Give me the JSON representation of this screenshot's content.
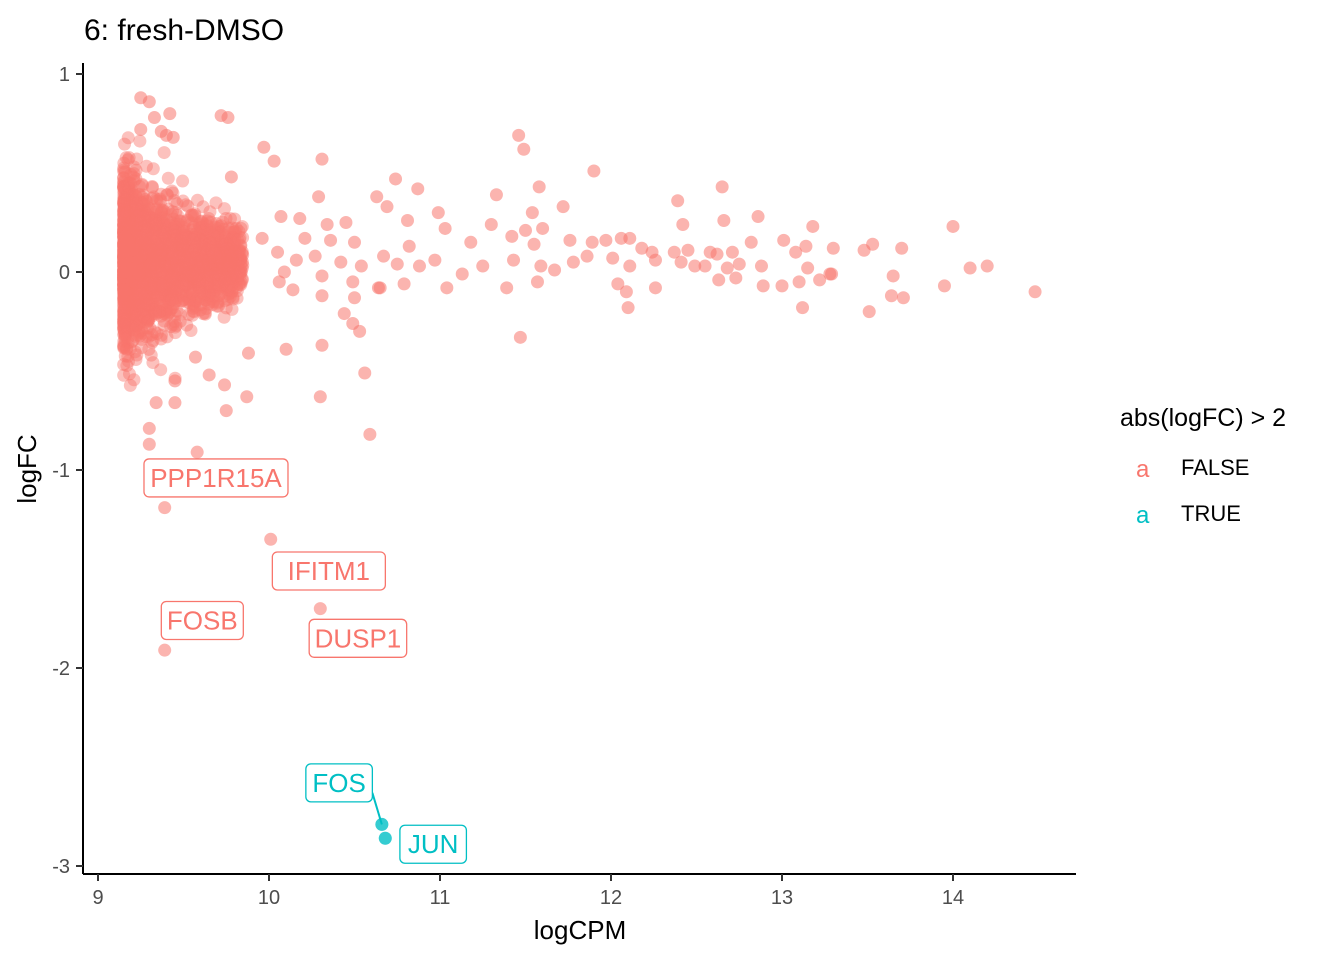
{
  "chart_data": {
    "type": "scatter",
    "title": "6: fresh-DMSO",
    "xlabel": "logCPM",
    "ylabel": "logFC",
    "xlim": [
      8.9,
      14.75
    ],
    "ylim": [
      -3.05,
      1.05
    ],
    "x_ticks": [
      9,
      10,
      11,
      12,
      13,
      14
    ],
    "y_ticks": [
      -3,
      -2,
      -1,
      0,
      1
    ],
    "grid": false,
    "legend": {
      "title": "abs(logFC) > 2",
      "position": "right",
      "key_glyph": "a",
      "entries": [
        {
          "label": "FALSE",
          "color": "#F8766D"
        },
        {
          "label": "TRUE",
          "color": "#00BFC4"
        }
      ]
    },
    "series": [
      {
        "name": "FALSE",
        "color": "#F8766D",
        "points": [
          [
            9.25,
            0.88
          ],
          [
            9.3,
            0.86
          ],
          [
            9.42,
            0.8
          ],
          [
            9.33,
            0.78
          ],
          [
            9.72,
            0.79
          ],
          [
            9.76,
            0.78
          ],
          [
            9.25,
            0.72
          ],
          [
            9.37,
            0.71
          ],
          [
            9.4,
            0.69
          ],
          [
            9.44,
            0.68
          ],
          [
            9.97,
            0.63
          ],
          [
            10.31,
            0.57
          ],
          [
            10.03,
            0.56
          ],
          [
            9.78,
            0.48
          ],
          [
            11.46,
            0.69
          ],
          [
            11.49,
            0.62
          ],
          [
            11.9,
            0.51
          ],
          [
            10.74,
            0.47
          ],
          [
            10.87,
            0.42
          ],
          [
            11.58,
            0.43
          ],
          [
            12.65,
            0.43
          ],
          [
            10.63,
            0.38
          ],
          [
            10.29,
            0.38
          ],
          [
            11.33,
            0.39
          ],
          [
            12.39,
            0.36
          ],
          [
            10.69,
            0.33
          ],
          [
            11.54,
            0.3
          ],
          [
            11.72,
            0.33
          ],
          [
            10.81,
            0.26
          ],
          [
            10.99,
            0.3
          ],
          [
            10.07,
            0.28
          ],
          [
            10.18,
            0.27
          ],
          [
            10.34,
            0.24
          ],
          [
            10.45,
            0.25
          ],
          [
            11.3,
            0.24
          ],
          [
            11.5,
            0.21
          ],
          [
            11.6,
            0.22
          ],
          [
            12.42,
            0.24
          ],
          [
            12.66,
            0.26
          ],
          [
            12.86,
            0.28
          ],
          [
            13.18,
            0.23
          ],
          [
            14.0,
            0.23
          ],
          [
            9.96,
            0.17
          ],
          [
            10.21,
            0.17
          ],
          [
            10.36,
            0.16
          ],
          [
            10.5,
            0.15
          ],
          [
            10.82,
            0.13
          ],
          [
            11.03,
            0.22
          ],
          [
            11.18,
            0.15
          ],
          [
            11.42,
            0.18
          ],
          [
            11.55,
            0.14
          ],
          [
            11.76,
            0.16
          ],
          [
            11.89,
            0.15
          ],
          [
            11.97,
            0.16
          ],
          [
            12.06,
            0.17
          ],
          [
            12.11,
            0.17
          ],
          [
            12.18,
            0.12
          ],
          [
            12.24,
            0.1
          ],
          [
            12.37,
            0.1
          ],
          [
            12.45,
            0.11
          ],
          [
            12.58,
            0.1
          ],
          [
            12.62,
            0.09
          ],
          [
            12.71,
            0.1
          ],
          [
            12.82,
            0.15
          ],
          [
            13.01,
            0.16
          ],
          [
            13.08,
            0.1
          ],
          [
            13.14,
            0.13
          ],
          [
            13.3,
            0.12
          ],
          [
            13.48,
            0.11
          ],
          [
            13.53,
            0.14
          ],
          [
            13.7,
            0.12
          ],
          [
            10.05,
            0.1
          ],
          [
            10.16,
            0.06
          ],
          [
            10.27,
            0.08
          ],
          [
            10.42,
            0.05
          ],
          [
            10.54,
            0.03
          ],
          [
            10.67,
            0.08
          ],
          [
            10.75,
            0.04
          ],
          [
            10.88,
            0.03
          ],
          [
            10.97,
            0.06
          ],
          [
            11.25,
            0.03
          ],
          [
            11.43,
            0.06
          ],
          [
            11.59,
            0.03
          ],
          [
            11.78,
            0.05
          ],
          [
            11.86,
            0.08
          ],
          [
            12.01,
            0.07
          ],
          [
            12.11,
            0.03
          ],
          [
            12.26,
            0.06
          ],
          [
            12.41,
            0.05
          ],
          [
            12.49,
            0.03
          ],
          [
            12.55,
            0.03
          ],
          [
            12.68,
            0.02
          ],
          [
            12.75,
            0.04
          ],
          [
            12.88,
            0.03
          ],
          [
            13.15,
            0.02
          ],
          [
            13.28,
            -0.01
          ],
          [
            13.65,
            -0.02
          ],
          [
            13.95,
            -0.07
          ],
          [
            14.1,
            0.02
          ],
          [
            14.2,
            0.03
          ],
          [
            14.48,
            -0.1
          ],
          [
            10.09,
            0.0
          ],
          [
            10.31,
            -0.02
          ],
          [
            10.49,
            -0.05
          ],
          [
            10.64,
            -0.08
          ],
          [
            10.79,
            -0.06
          ],
          [
            11.13,
            -0.01
          ],
          [
            11.57,
            -0.05
          ],
          [
            11.67,
            0.01
          ],
          [
            12.04,
            -0.06
          ],
          [
            12.09,
            -0.1
          ],
          [
            12.26,
            -0.08
          ],
          [
            12.63,
            -0.04
          ],
          [
            12.73,
            -0.03
          ],
          [
            12.89,
            -0.07
          ],
          [
            13.0,
            -0.07
          ],
          [
            13.1,
            -0.05
          ],
          [
            13.22,
            -0.04
          ],
          [
            13.29,
            -0.01
          ],
          [
            13.51,
            -0.2
          ],
          [
            13.64,
            -0.12
          ],
          [
            13.71,
            -0.13
          ],
          [
            10.06,
            -0.05
          ],
          [
            10.14,
            -0.09
          ],
          [
            10.31,
            -0.12
          ],
          [
            10.5,
            -0.13
          ],
          [
            10.65,
            -0.08
          ],
          [
            11.04,
            -0.08
          ],
          [
            11.39,
            -0.08
          ],
          [
            11.47,
            -0.33
          ],
          [
            12.1,
            -0.18
          ],
          [
            13.12,
            -0.18
          ],
          [
            10.44,
            -0.21
          ],
          [
            10.49,
            -0.26
          ],
          [
            10.53,
            -0.3
          ],
          [
            10.31,
            -0.37
          ],
          [
            10.1,
            -0.39
          ],
          [
            10.56,
            -0.51
          ],
          [
            10.3,
            -0.63
          ],
          [
            10.59,
            -0.82
          ],
          [
            9.87,
            -0.63
          ],
          [
            9.75,
            -0.7
          ],
          [
            9.58,
            -0.91
          ],
          [
            9.45,
            -0.66
          ],
          [
            9.3,
            -0.79
          ],
          [
            9.3,
            -0.87
          ],
          [
            9.65,
            -0.52
          ],
          [
            9.57,
            -0.43
          ],
          [
            9.88,
            -0.41
          ],
          [
            9.74,
            -0.57
          ],
          [
            9.34,
            -0.66
          ],
          [
            9.45,
            -0.55
          ]
        ]
      },
      {
        "name": "TRUE",
        "color": "#00BFC4",
        "points": [
          [
            10.66,
            -2.79
          ],
          [
            10.68,
            -2.86
          ]
        ]
      }
    ],
    "labeled_points": [
      {
        "label": "PPP1R15A",
        "x": 9.39,
        "y": -1.19,
        "color": "#F8766D"
      },
      {
        "label": "IFITM1",
        "x": 10.01,
        "y": -1.35,
        "color": "#F8766D"
      },
      {
        "label": "DUSP1",
        "x": 10.3,
        "y": -1.7,
        "color": "#F8766D"
      },
      {
        "label": "FOSB",
        "x": 9.39,
        "y": -1.91,
        "color": "#F8766D"
      },
      {
        "label": "FOS",
        "x": 10.66,
        "y": -2.79,
        "color": "#00BFC4"
      },
      {
        "label": "JUN",
        "x": 10.68,
        "y": -2.86,
        "color": "#00BFC4"
      }
    ],
    "dense_cloud": {
      "description_only_for_rendering": false,
      "x_range": [
        9.15,
        9.85
      ],
      "y_center": 0.05,
      "count": 2500,
      "color": "#F8766D"
    }
  }
}
